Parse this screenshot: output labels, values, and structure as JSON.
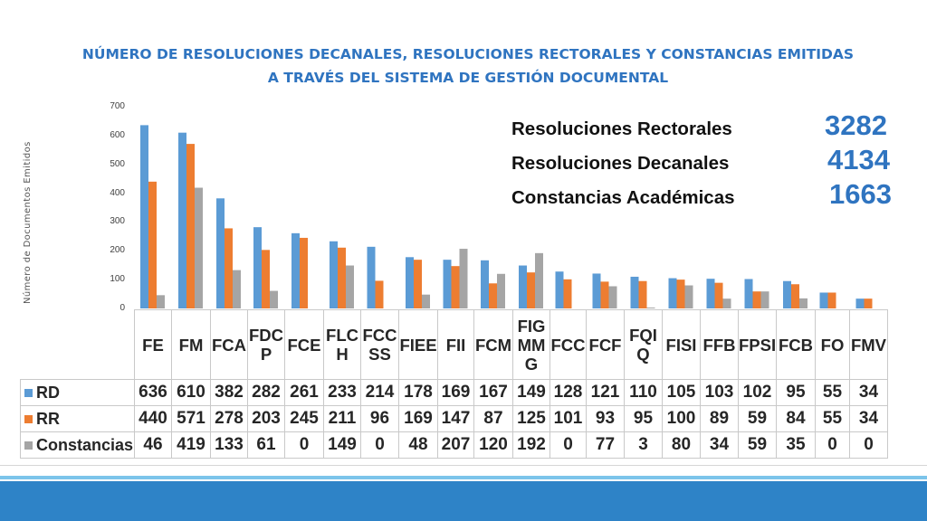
{
  "chart_data": {
    "type": "bar",
    "title": [
      "NÚMERO DE RESOLUCIONES DECANALES, RESOLUCIONES RECTORALES Y CONSTANCIAS EMITIDAS",
      "A TRAVÉS DEL SISTEMA DE GESTIÓN DOCUMENTAL"
    ],
    "ylabel": "Número de Documentos Emitidos",
    "ylim": [
      0,
      700
    ],
    "yticks": [
      "0",
      "100",
      "200",
      "300",
      "400",
      "500",
      "600",
      "700"
    ],
    "grid": false,
    "categories": [
      "FE",
      "FM",
      "FCA",
      "FDCP",
      "FCE",
      "FLCH",
      "FCCSS",
      "FIEE",
      "FII",
      "FCM",
      "FIGMMG",
      "FCC",
      "FCF",
      "FQIQ",
      "FISI",
      "FFB",
      "FPSI",
      "FCB",
      "FO",
      "FMV"
    ],
    "category_labels": [
      "FE",
      "FM",
      "FCA",
      "FDC\nP",
      "FCE",
      "FLC\nH",
      "FCC\nSS",
      "FIEE",
      "FII",
      "FCM",
      "FIG\nMM\nG",
      "FCC",
      "FCF",
      "FQI\nQ",
      "FISI",
      "FFB",
      "FPSI",
      "FCB",
      "FO",
      "FMV"
    ],
    "series": [
      {
        "name": "RD",
        "color": "#5b9bd5",
        "values": [
          636,
          610,
          382,
          282,
          261,
          233,
          214,
          178,
          169,
          167,
          149,
          128,
          121,
          110,
          105,
          103,
          102,
          95,
          55,
          34
        ]
      },
      {
        "name": "RR",
        "color": "#ed7d31",
        "values": [
          440,
          571,
          278,
          203,
          245,
          211,
          96,
          169,
          147,
          87,
          125,
          101,
          93,
          95,
          100,
          89,
          59,
          84,
          55,
          34
        ]
      },
      {
        "name": "Constancias",
        "color": "#a5a5a5",
        "values": [
          46,
          419,
          133,
          61,
          0,
          149,
          0,
          48,
          207,
          120,
          192,
          0,
          77,
          3,
          80,
          34,
          59,
          35,
          0,
          0
        ]
      }
    ]
  },
  "totals": [
    {
      "label": "Resoluciones Rectorales",
      "value": "3282"
    },
    {
      "label": "Resoluciones Decanales",
      "value": "4134"
    },
    {
      "label": "Constancias Académicas",
      "value": "1663"
    }
  ],
  "colors": {
    "title": "#2f74c0",
    "footer_band": "#2e83c7",
    "footer_line": "#7cc4ea"
  }
}
